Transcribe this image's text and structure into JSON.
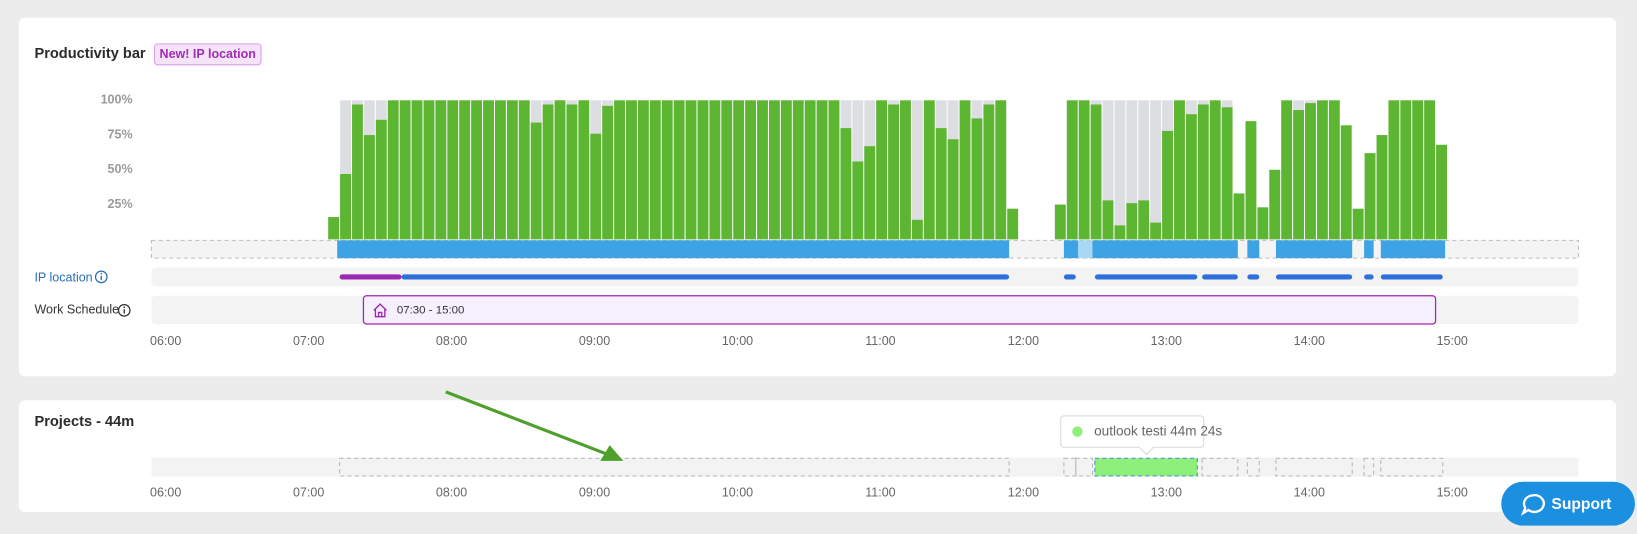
{
  "header": {
    "title": "Productivity bar",
    "badge": "New! IP location"
  },
  "chart_data": {
    "type": "bar",
    "x": [
      428,
      433,
      438,
      443,
      448,
      453,
      458,
      463,
      468,
      473,
      478,
      483,
      488,
      493,
      498,
      503,
      508,
      513,
      518,
      523,
      528,
      533,
      538,
      543,
      548,
      553,
      558,
      563,
      568,
      573,
      578,
      583,
      588,
      593,
      598,
      603,
      608,
      613,
      618,
      623,
      628,
      633,
      638,
      643,
      648,
      653,
      658,
      663,
      668,
      673,
      678,
      683,
      688,
      693,
      698,
      703,
      708,
      713,
      733,
      738,
      743,
      748,
      753,
      758,
      763,
      768,
      773,
      778,
      783,
      788,
      793,
      798,
      803,
      808,
      813,
      818,
      823,
      828,
      833,
      838,
      843,
      848,
      853,
      858,
      863,
      868,
      873,
      878,
      883,
      888,
      893
    ],
    "xlim": [
      354,
      953
    ],
    "xticks": [
      {
        "value": 360,
        "label": "06:00"
      },
      {
        "value": 420,
        "label": "07:00"
      },
      {
        "value": 480,
        "label": "08:00"
      },
      {
        "value": 540,
        "label": "09:00"
      },
      {
        "value": 600,
        "label": "10:00"
      },
      {
        "value": 660,
        "label": "11:00"
      },
      {
        "value": 720,
        "label": "12:00"
      },
      {
        "value": 780,
        "label": "13:00"
      },
      {
        "value": 840,
        "label": "14:00"
      },
      {
        "value": 900,
        "label": "15:00"
      }
    ],
    "ylim": [
      0,
      100
    ],
    "yticks": [
      {
        "value": 25,
        "label": "25%"
      },
      {
        "value": 50,
        "label": "50%"
      },
      {
        "value": 75,
        "label": "75%"
      },
      {
        "value": 100,
        "label": "100%"
      }
    ],
    "series": [
      {
        "color": "#dcdee2",
        "values": [
          16,
          100,
          100,
          100,
          100,
          100,
          100,
          100,
          100,
          100,
          100,
          100,
          100,
          100,
          100,
          100,
          100,
          100,
          100,
          100,
          100,
          100,
          100,
          100,
          100,
          100,
          100,
          100,
          100,
          100,
          100,
          100,
          100,
          100,
          100,
          100,
          100,
          100,
          100,
          100,
          100,
          100,
          100,
          100,
          100,
          100,
          100,
          100,
          100,
          100,
          100,
          100,
          100,
          100,
          100,
          100,
          100,
          22,
          25,
          100,
          100,
          100,
          100,
          100,
          100,
          100,
          100,
          100,
          100,
          100,
          100,
          100,
          100,
          33,
          85,
          23,
          50,
          100,
          100,
          100,
          100,
          100,
          82,
          22,
          62,
          75,
          100,
          100,
          100,
          100,
          68
        ]
      },
      {
        "color": "#5db632",
        "values": [
          16,
          47,
          97,
          75,
          86,
          100,
          100,
          100,
          100,
          100,
          100,
          100,
          100,
          100,
          100,
          100,
          100,
          84,
          97,
          100,
          97,
          100,
          76,
          96,
          100,
          100,
          100,
          100,
          100,
          100,
          100,
          100,
          100,
          100,
          100,
          100,
          100,
          100,
          100,
          100,
          100,
          100,
          100,
          80,
          56,
          67,
          100,
          97,
          100,
          14,
          100,
          80,
          72,
          100,
          87,
          97,
          100,
          22,
          25,
          100,
          100,
          97,
          28,
          10,
          26,
          28,
          12,
          78,
          100,
          90,
          97,
          100,
          95,
          33,
          85,
          23,
          50,
          100,
          93,
          98,
          100,
          100,
          82,
          22,
          62,
          75,
          100,
          100,
          100,
          100,
          68
        ]
      }
    ]
  },
  "activity": [
    {
      "start": 432,
      "end": 714,
      "color": "#3ea3e4"
    },
    {
      "start": 737,
      "end": 743,
      "color": "#3ea3e4"
    },
    {
      "start": 743,
      "end": 749,
      "color": "#a9d8f5"
    },
    {
      "start": 749,
      "end": 810,
      "color": "#3ea3e4"
    },
    {
      "start": 814,
      "end": 819,
      "color": "#3ea3e4"
    },
    {
      "start": 826,
      "end": 858,
      "color": "#3ea3e4"
    },
    {
      "start": 863,
      "end": 867,
      "color": "#3ea3e4"
    },
    {
      "start": 870,
      "end": 897,
      "color": "#3ea3e4"
    }
  ],
  "ip_location": {
    "label": "IP location",
    "segments": [
      {
        "start": 433,
        "end": 459,
        "color": "#9c27b0"
      },
      {
        "start": 459,
        "end": 714,
        "color": "#2f6fdc"
      },
      {
        "start": 737,
        "end": 742,
        "color": "#2f6fdc"
      },
      {
        "start": 750,
        "end": 793,
        "color": "#2f6fdc"
      },
      {
        "start": 795,
        "end": 810,
        "color": "#2f6fdc"
      },
      {
        "start": 814,
        "end": 819,
        "color": "#2f6fdc"
      },
      {
        "start": 826,
        "end": 858,
        "color": "#2f6fdc"
      },
      {
        "start": 863,
        "end": 867,
        "color": "#2f6fdc"
      },
      {
        "start": 870,
        "end": 896,
        "color": "#2f6fdc"
      }
    ]
  },
  "work_schedule": {
    "label": "Work Schedule",
    "start": 443,
    "end": 893,
    "text": "07:30 - 15:00"
  },
  "projects": {
    "title": "Projects - 44m",
    "tooltip": "outlook testi 44m 24s",
    "segments": [
      {
        "start": 433,
        "end": 714
      },
      {
        "start": 737,
        "end": 742
      },
      {
        "start": 742,
        "end": 749
      },
      {
        "start": 750,
        "end": 793,
        "color": "#8ef07a"
      },
      {
        "start": 795,
        "end": 810
      },
      {
        "start": 814,
        "end": 819
      },
      {
        "start": 826,
        "end": 858
      },
      {
        "start": 863,
        "end": 867
      },
      {
        "start": 870,
        "end": 896
      }
    ]
  },
  "support": "Support"
}
